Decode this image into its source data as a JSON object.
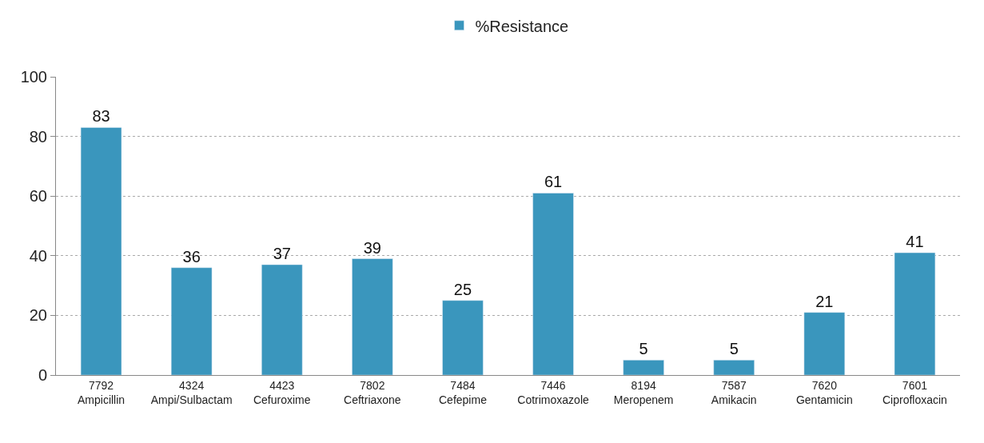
{
  "chart_data": {
    "type": "bar",
    "categories": [
      "7792\nAmpicillin",
      "4324\nAmpi/Sulbactam",
      "4423\nCefuroxime",
      "7802\nCeftriaxone",
      "7484\nCefepime",
      "7446\nCotrimoxazole",
      "8194\nMeropenem",
      "7587\nAmikacin",
      "7620\nGentamicin",
      "7601\nCiprofloxacin"
    ],
    "series": [
      {
        "name": "%Resistance",
        "color": "#3a96bd",
        "values": [
          83,
          36,
          37,
          39,
          25,
          61,
          5,
          5,
          21,
          41
        ]
      }
    ],
    "ylim": [
      0,
      100
    ],
    "yticks": [
      0,
      20,
      40,
      60,
      80,
      100
    ],
    "grid": "y",
    "legend": "top",
    "data_labels": true
  }
}
